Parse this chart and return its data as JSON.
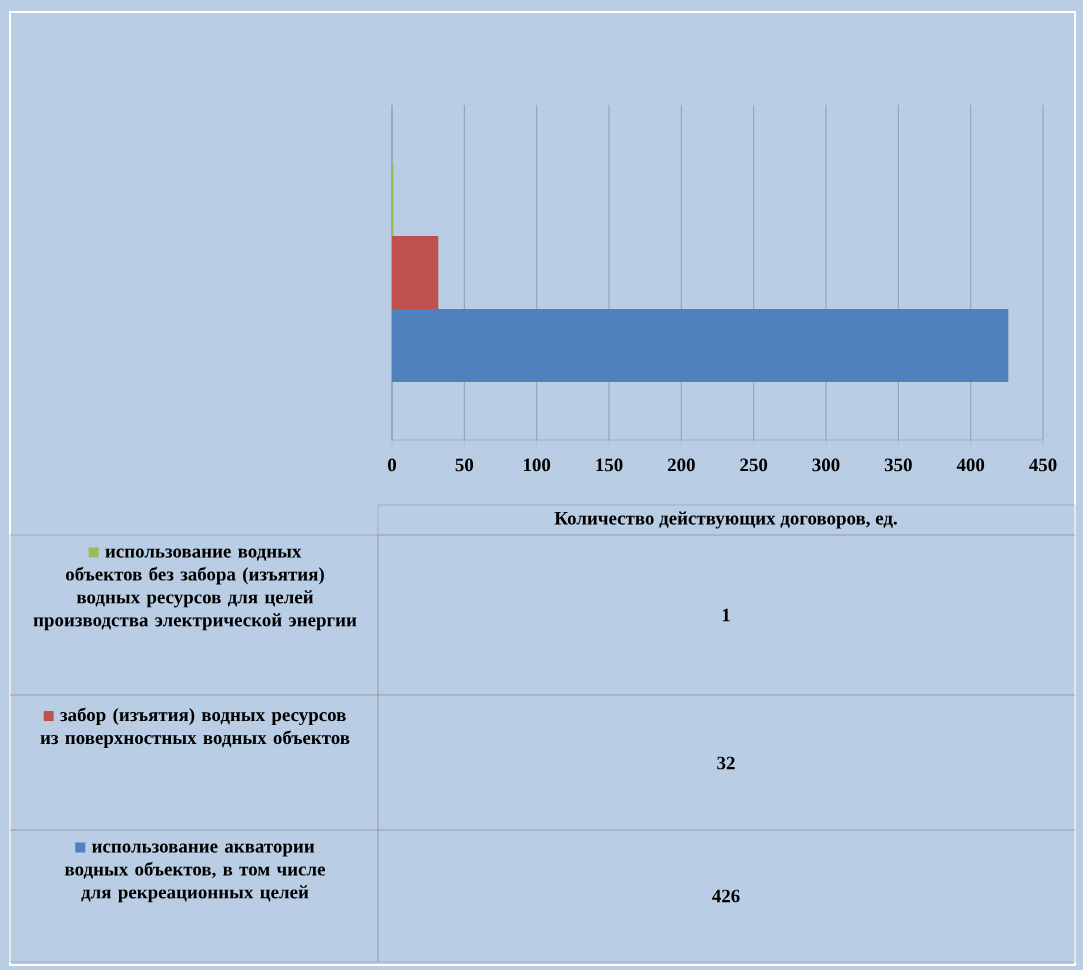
{
  "chart_data": {
    "type": "bar",
    "orientation": "horizontal",
    "categories": [
      null
    ],
    "xlabel": "Количество действующих договоров, ед.",
    "series": [
      {
        "name": "использование водных объектов без забора (изъятия)  водных ресурсов для целей производства электрической энергии",
        "color": "#9bbb59",
        "values": [
          1
        ]
      },
      {
        "name": "забор (изъятия)  водных ресурсов из поверхностных водных объектов",
        "color": "#c0504d",
        "values": [
          32
        ]
      },
      {
        "name": "использование акватории водных объектов, в том числе для рекреационных целей",
        "color": "#4f81bd",
        "values": [
          426
        ]
      }
    ],
    "xlim": [
      0,
      450
    ],
    "xticks": [
      0,
      50,
      100,
      150,
      200,
      250,
      300,
      350,
      400,
      450
    ],
    "grid": "x",
    "legend": "bottom",
    "annotations": [
      "1",
      "32",
      "426"
    ]
  }
}
